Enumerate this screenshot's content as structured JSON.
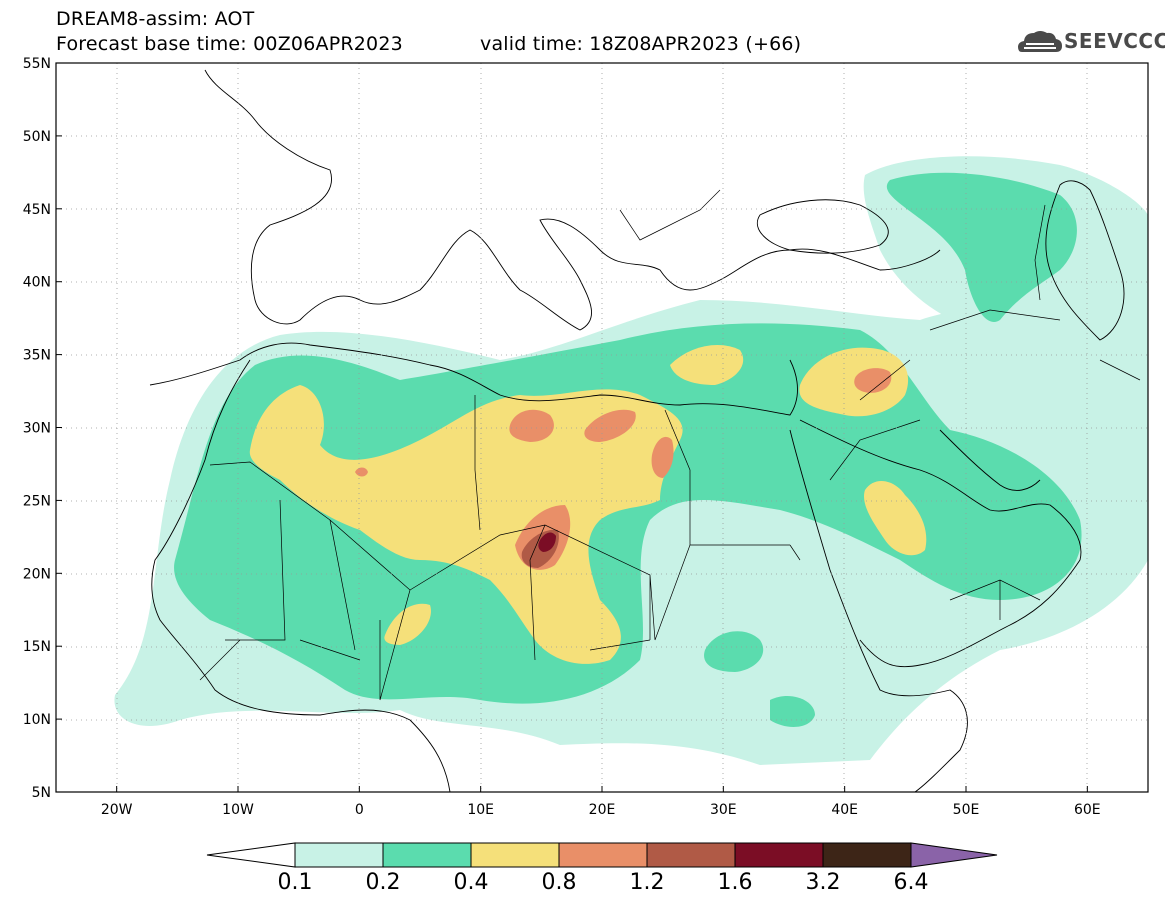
{
  "header": {
    "title": "DREAM8-assim: AOT",
    "base_time": "Forecast base time: 00Z06APR2023",
    "valid_time": "valid time: 18Z08APR2023 (+66)",
    "logo_text": "SEEVCCC"
  },
  "map": {
    "lon_range": [
      -25,
      65
    ],
    "lat_range": [
      5,
      55
    ],
    "lat_ticks": [
      "55N",
      "50N",
      "45N",
      "40N",
      "35N",
      "30N",
      "25N",
      "20N",
      "15N",
      "10N",
      "5N"
    ],
    "lon_ticks": [
      "20W",
      "10W",
      "0",
      "10E",
      "20E",
      "30E",
      "40E",
      "50E",
      "60E"
    ],
    "gridlines": "dotted"
  },
  "colorbar": {
    "labels": [
      "0.1",
      "0.2",
      "0.4",
      "0.8",
      "1.2",
      "1.6",
      "3.2",
      "6.4"
    ],
    "colors": [
      "#c8f2e6",
      "#5bdcae",
      "#f5e07a",
      "#e98f68",
      "#b05a46",
      "#7b0d25",
      "#3d2517",
      "#8a63a8"
    ],
    "below_color": "#ffffff"
  }
}
